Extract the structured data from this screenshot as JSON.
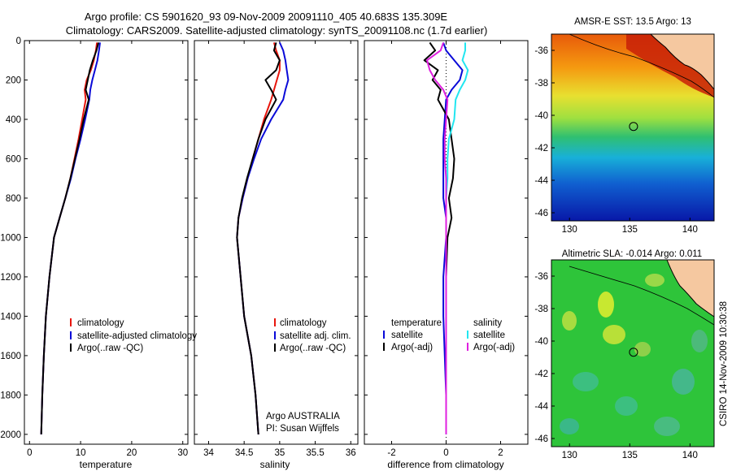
{
  "header": {
    "line1": "Argo profile: CS 5901620_93 09-Nov-2009 20091110_405 40.683S 135.309E",
    "line2": "Climatology: CARS2009. Satellite-adjusted climatology: synTS_20091108.nc (1.7d earlier)"
  },
  "side_label": "CSIRO 14-Nov-2009 10:30:38",
  "colors": {
    "climatology": "#e8150c",
    "satellite": "#0a0ad8",
    "argo": "#000000",
    "sal_satellite": "#22e6f0",
    "sal_argo": "#e020e0",
    "land": "#f5c8a0"
  },
  "chart_data": [
    {
      "type": "line",
      "xlabel": "temperature",
      "xlim": [
        -1,
        31
      ],
      "ylim": [
        2050,
        0
      ],
      "xticks": [
        0,
        10,
        20,
        30
      ],
      "yticks": [
        0,
        200,
        400,
        600,
        800,
        1000,
        1200,
        1400,
        1600,
        1800,
        2000
      ],
      "legend": [
        "climatology",
        "satellite-adjusted climatology",
        "Argo(..raw -QC)"
      ],
      "series": [
        {
          "name": "climatology",
          "color": "#e8150c",
          "x": [
            13.2,
            13.0,
            12.6,
            12.0,
            11.2,
            10.8,
            11.0,
            10.3,
            9.6,
            8.8,
            8.0,
            7.0,
            5.9,
            4.8,
            3.9,
            3.2,
            2.8,
            2.5,
            2.3
          ],
          "y": [
            10,
            50,
            100,
            150,
            200,
            250,
            300,
            400,
            500,
            600,
            700,
            800,
            900,
            1000,
            1200,
            1400,
            1600,
            1800,
            2000
          ]
        },
        {
          "name": "satellite-adjusted climatology",
          "color": "#0a0ad8",
          "x": [
            13.8,
            13.6,
            13.3,
            12.8,
            12.3,
            11.9,
            11.7,
            10.9,
            10.0,
            9.0,
            8.1,
            7.0,
            5.9,
            4.8,
            3.9,
            3.2,
            2.8,
            2.5,
            2.3
          ],
          "y": [
            10,
            50,
            100,
            150,
            200,
            250,
            300,
            400,
            500,
            600,
            700,
            800,
            900,
            1000,
            1200,
            1400,
            1600,
            1800,
            2000
          ]
        },
        {
          "name": "Argo(..raw -QC)",
          "color": "#000000",
          "x": [
            13.5,
            13.1,
            12.4,
            11.8,
            11.4,
            11.0,
            11.6,
            10.6,
            9.8,
            8.9,
            8.0,
            7.0,
            5.9,
            4.8,
            3.9,
            3.2,
            2.8,
            2.5,
            2.3
          ],
          "y": [
            10,
            50,
            100,
            150,
            200,
            250,
            300,
            400,
            500,
            600,
            700,
            800,
            900,
            1000,
            1200,
            1400,
            1600,
            1800,
            2000
          ]
        }
      ]
    },
    {
      "type": "line",
      "xlabel": "salinity",
      "xlim": [
        33.8,
        36.1
      ],
      "ylim": [
        2050,
        0
      ],
      "xticks": [
        34,
        34.5,
        35,
        35.5,
        36
      ],
      "legend": [
        "climatology",
        "satellite adj. clim.",
        "Argo(..raw -QC)"
      ],
      "annotation": [
        "Argo AUSTRALIA",
        "PI: Susan Wijffels"
      ],
      "series": [
        {
          "name": "climatology",
          "color": "#e8150c",
          "x": [
            34.92,
            34.95,
            35.0,
            35.0,
            34.96,
            34.92,
            34.88,
            34.78,
            34.7,
            34.62,
            34.55,
            34.48,
            34.42,
            34.4,
            34.45,
            34.5,
            34.6,
            34.66,
            34.7
          ],
          "y": [
            10,
            50,
            100,
            150,
            200,
            250,
            300,
            400,
            500,
            600,
            700,
            800,
            900,
            1000,
            1200,
            1400,
            1600,
            1800,
            2000
          ]
        },
        {
          "name": "satellite adj. clim.",
          "color": "#0a0ad8",
          "x": [
            35.0,
            35.05,
            35.08,
            35.1,
            35.12,
            35.08,
            35.05,
            34.88,
            34.74,
            34.64,
            34.55,
            34.48,
            34.42,
            34.4,
            34.45,
            34.5,
            34.6,
            34.66,
            34.7
          ],
          "y": [
            10,
            50,
            100,
            150,
            200,
            250,
            300,
            400,
            500,
            600,
            700,
            800,
            900,
            1000,
            1200,
            1400,
            1600,
            1800,
            2000
          ]
        },
        {
          "name": "Argo(..raw -QC)",
          "color": "#000000",
          "x": [
            34.95,
            34.92,
            35.0,
            34.95,
            34.8,
            34.88,
            34.95,
            34.8,
            34.7,
            34.62,
            34.54,
            34.47,
            34.42,
            34.4,
            34.45,
            34.5,
            34.6,
            34.66,
            34.7
          ],
          "y": [
            10,
            50,
            100,
            150,
            200,
            250,
            300,
            400,
            500,
            600,
            700,
            800,
            900,
            1000,
            1200,
            1400,
            1600,
            1800,
            2000
          ]
        }
      ]
    },
    {
      "type": "line",
      "xlabel": "difference from climatology",
      "xlim": [
        -3,
        3
      ],
      "ylim": [
        2050,
        0
      ],
      "xticks": [
        -2,
        0,
        2
      ],
      "legend": [
        "temperature",
        "satellite",
        "Argo(-adj)",
        "salinity",
        "satellite",
        "Argo(-adj)"
      ],
      "series": [
        {
          "name": "temperature satellite",
          "color": "#0a0ad8",
          "x": [
            -0.1,
            0.0,
            0.3,
            0.6,
            0.5,
            0.2,
            0.0,
            -0.05,
            -0.1,
            -0.1,
            -0.1,
            -0.1,
            0.0,
            0.0,
            -0.1,
            -0.1,
            -0.05,
            0.0,
            0.0
          ],
          "y": [
            10,
            50,
            100,
            150,
            200,
            250,
            300,
            400,
            500,
            600,
            700,
            800,
            900,
            1000,
            1200,
            1400,
            1600,
            1800,
            2000
          ]
        },
        {
          "name": "temperature Argo(-adj)",
          "color": "#000000",
          "x": [
            -0.6,
            -0.4,
            -0.8,
            -0.3,
            -0.5,
            -0.2,
            -0.3,
            0.1,
            0.2,
            0.3,
            0.25,
            0.1,
            0.2,
            0.05,
            0.0,
            0.0,
            0.0,
            0.0,
            0.0
          ],
          "y": [
            10,
            50,
            100,
            150,
            200,
            250,
            300,
            400,
            500,
            600,
            700,
            800,
            900,
            1000,
            1200,
            1400,
            1600,
            1800,
            2000
          ]
        },
        {
          "name": "salinity satellite",
          "color": "#22e6f0",
          "x": [
            0.7,
            0.7,
            0.6,
            0.8,
            0.7,
            0.5,
            0.35,
            0.3,
            0.1,
            0.05,
            0.05,
            0.0,
            0.0,
            0.0,
            0.0,
            0.0,
            0.0,
            0.0,
            0.0
          ],
          "y": [
            10,
            50,
            100,
            150,
            200,
            250,
            300,
            400,
            500,
            600,
            700,
            800,
            900,
            1000,
            1200,
            1400,
            1600,
            1800,
            2000
          ]
        },
        {
          "name": "salinity Argo(-adj)",
          "color": "#e020e0",
          "x": [
            -0.1,
            -0.2,
            -0.7,
            -0.6,
            -0.4,
            -0.1,
            0.05,
            0.0,
            -0.05,
            -0.05,
            0.0,
            0.0,
            0.0,
            0.0,
            0.0,
            0.0,
            0.0,
            0.0,
            0.0
          ],
          "y": [
            10,
            50,
            100,
            150,
            200,
            250,
            300,
            400,
            500,
            600,
            700,
            800,
            900,
            1000,
            1200,
            1400,
            1600,
            1800,
            2000
          ]
        }
      ]
    },
    {
      "type": "heatmap",
      "title": "AMSR-E SST: 13.5 Argo: 13",
      "xlim": [
        128.5,
        142
      ],
      "ylim": [
        -46.5,
        -35
      ],
      "xticks": [
        130,
        135,
        140
      ],
      "yticks": [
        -36,
        -38,
        -40,
        -42,
        -44,
        -46
      ],
      "marker": {
        "lon": 135.309,
        "lat": -40.683
      }
    },
    {
      "type": "heatmap",
      "title": "Altimetric SLA: -0.014 Argo: 0.011",
      "xlim": [
        128.5,
        142
      ],
      "ylim": [
        -46.5,
        -35
      ],
      "xticks": [
        130,
        135,
        140
      ],
      "yticks": [
        -36,
        -38,
        -40,
        -42,
        -44,
        -46
      ],
      "marker": {
        "lon": 135.309,
        "lat": -40.683
      }
    }
  ]
}
